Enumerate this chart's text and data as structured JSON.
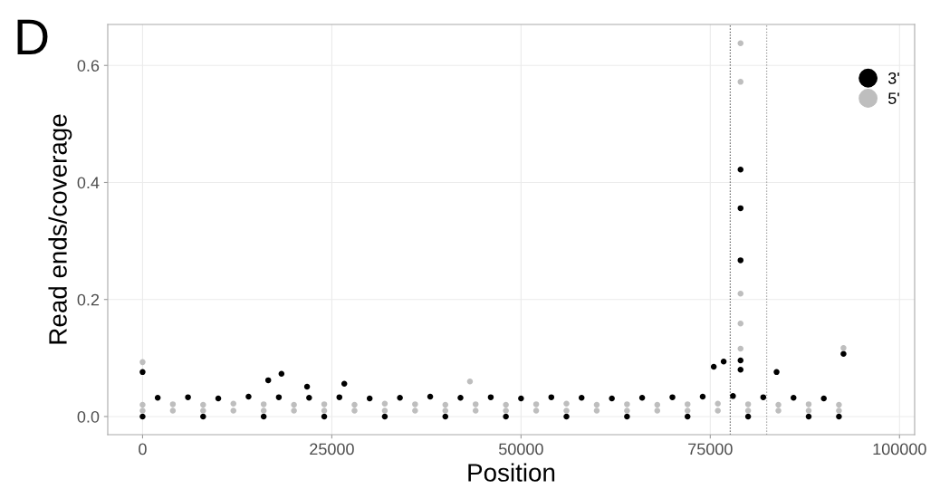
{
  "chart_data": {
    "type": "scatter",
    "xlabel": "Position",
    "ylabel": "Read ends/coverage",
    "annotations": [
      "D"
    ],
    "xlim": [
      -4600,
      102000
    ],
    "xticks": [
      0,
      25000,
      50000,
      75000,
      100000
    ],
    "ylim": [
      -0.031,
      0.67
    ],
    "yticks": [
      {
        "value": 0,
        "label": "0.0"
      },
      {
        "value": 0.2,
        "label": "0.2"
      },
      {
        "value": 0.4,
        "label": "0.4"
      },
      {
        "value": 0.6,
        "label": "0.6"
      }
    ],
    "grid": true,
    "legend": "top right",
    "marker": "circle",
    "ref_lines": [
      {
        "axis": "x",
        "value": 77640,
        "color": "#555555",
        "line_style": "dotted"
      },
      {
        "axis": "x",
        "value": 82450,
        "color": "#999999",
        "line_style": "dotted"
      }
    ],
    "series": [
      {
        "name": "3'",
        "color": "#000000",
        "x": [
          2000,
          6000,
          10000,
          14000,
          18000,
          22000,
          26000,
          30000,
          34000,
          38000,
          42000,
          46000,
          50000,
          54000,
          58000,
          62000,
          66000,
          70000,
          74000,
          78000,
          82000,
          86000,
          90000,
          0,
          8000,
          16000,
          24000,
          32000,
          40000,
          48000,
          56000,
          64000,
          72000,
          80000,
          88000,
          92000,
          0,
          79000,
          79000,
          79000,
          79000,
          79000,
          18350,
          76770,
          75460,
          83760,
          92600,
          16600,
          26650,
          21730
        ],
        "values": [
          0.032,
          0.033,
          0.031,
          0.034,
          0.033,
          0.032,
          0.033,
          0.031,
          0.032,
          0.034,
          0.032,
          0.033,
          0.031,
          0.033,
          0.032,
          0.031,
          0.032,
          0.033,
          0.034,
          0.035,
          0.033,
          0.032,
          0.031,
          0,
          0,
          0,
          0,
          0,
          0,
          0,
          0,
          0,
          0,
          0,
          0,
          0,
          0.076,
          0.422,
          0.356,
          0.267,
          0.096,
          0.08,
          0.073,
          0.094,
          0.085,
          0.076,
          0.107,
          0.062,
          0.056,
          0.051
        ]
      },
      {
        "name": "5'",
        "color": "#bebebe",
        "x": [
          0,
          4000,
          8000,
          12000,
          16000,
          20000,
          24000,
          28000,
          32000,
          36000,
          40000,
          44000,
          48000,
          52000,
          56000,
          60000,
          64000,
          68000,
          72000,
          76000,
          80000,
          84000,
          88000,
          92000,
          0,
          4000,
          8000,
          12000,
          16000,
          20000,
          24000,
          28000,
          32000,
          36000,
          40000,
          44000,
          48000,
          52000,
          56000,
          60000,
          64000,
          68000,
          72000,
          76000,
          80000,
          84000,
          88000,
          92000,
          79000,
          79000,
          79000,
          79000,
          79000,
          92600,
          0,
          43250
        ],
        "values": [
          0.02,
          0.021,
          0.02,
          0.022,
          0.021,
          0.02,
          0.021,
          0.02,
          0.022,
          0.021,
          0.02,
          0.021,
          0.02,
          0.021,
          0.022,
          0.02,
          0.021,
          0.02,
          0.021,
          0.022,
          0.021,
          0.02,
          0.021,
          0.02,
          0.01,
          0.01,
          0.01,
          0.01,
          0.01,
          0.01,
          0.01,
          0.01,
          0.01,
          0.01,
          0.01,
          0.01,
          0.01,
          0.01,
          0.01,
          0.01,
          0.01,
          0.01,
          0.01,
          0.01,
          0.01,
          0.01,
          0.01,
          0.01,
          0.638,
          0.572,
          0.21,
          0.159,
          0.116,
          0.117,
          0.093,
          0.06
        ]
      }
    ]
  }
}
